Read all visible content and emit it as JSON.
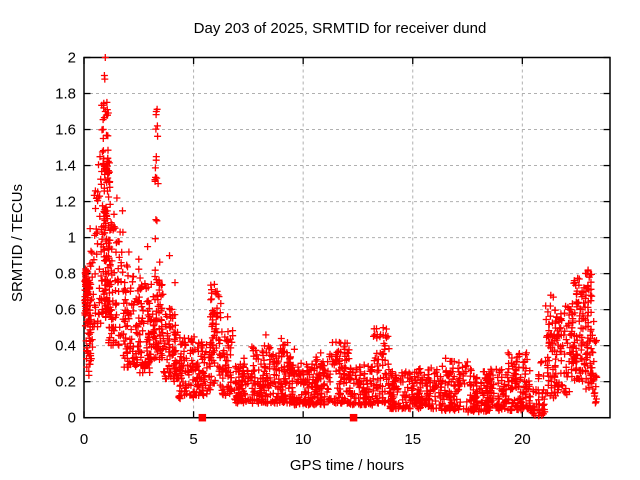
{
  "chart_data": {
    "type": "scatter",
    "title": "Day 203 of 2025, SRMTID for receiver dund",
    "xlabel": "GPS time / hours",
    "ylabel": "SRMTID / TECUs",
    "xlim": [
      0,
      24
    ],
    "ylim": [
      0,
      2
    ],
    "xticks": [
      0,
      5,
      10,
      15,
      20
    ],
    "xtick_labels": [
      "0",
      "5",
      "10",
      "15",
      "20"
    ],
    "yticks": [
      0,
      0.2,
      0.4,
      0.6,
      0.8,
      1,
      1.2,
      1.4,
      1.6,
      1.8,
      2
    ],
    "ytick_labels": [
      "0",
      "0.2",
      "0.4",
      "0.6",
      "0.8",
      "1",
      "1.2",
      "1.4",
      "1.6",
      "1.8",
      "2"
    ],
    "grid": "dashed-gray-at-major-ticks",
    "grid_color": "#b0b0b0",
    "marker": "plus",
    "marker_color": "#ff0000",
    "frame_color": "#000000",
    "legend": "none",
    "seed": 1337,
    "bands_format": "[t_start_h, t_end_h, n_points, value_min, value_max, skew_toward_min]",
    "density_bands": [
      [
        0.02,
        0.18,
        55,
        0.55,
        0.85,
        0.8
      ],
      [
        0.03,
        0.35,
        22,
        0.2,
        0.55,
        1
      ],
      [
        0.15,
        0.55,
        40,
        0.35,
        0.95,
        1.1
      ],
      [
        0.45,
        0.8,
        35,
        0.5,
        1.45,
        1.6
      ],
      [
        0.8,
        1.2,
        110,
        0.55,
        1.45,
        1.2
      ],
      [
        0.82,
        1.1,
        22,
        1.3,
        1.8,
        1
      ],
      [
        1.1,
        1.8,
        85,
        0.4,
        1.15,
        1.3
      ],
      [
        1.8,
        2.6,
        85,
        0.28,
        0.85,
        1.3
      ],
      [
        2.4,
        3.15,
        80,
        0.25,
        0.75,
        1.25
      ],
      [
        3.15,
        3.6,
        65,
        0.3,
        0.85,
        1.2
      ],
      [
        3.25,
        3.52,
        13,
        0.85,
        1.75,
        1
      ],
      [
        3.6,
        4.3,
        75,
        0.2,
        0.62,
        1.3
      ],
      [
        4.3,
        5.1,
        85,
        0.1,
        0.45,
        1.15
      ],
      [
        5.1,
        5.75,
        65,
        0.12,
        0.42,
        1.2
      ],
      [
        5.75,
        6.25,
        70,
        0.18,
        0.74,
        1.15
      ],
      [
        6.25,
        6.8,
        55,
        0.12,
        0.52,
        1.35
      ],
      [
        6.8,
        7.6,
        80,
        0.08,
        0.3,
        1.3
      ],
      [
        7.6,
        8.6,
        100,
        0.08,
        0.4,
        1.5
      ],
      [
        8.6,
        9.4,
        90,
        0.08,
        0.42,
        1.6
      ],
      [
        9.4,
        10.2,
        90,
        0.07,
        0.34,
        1.5
      ],
      [
        10.2,
        11.2,
        100,
        0.07,
        0.34,
        1.5
      ],
      [
        11.2,
        12.1,
        90,
        0.08,
        0.42,
        1.5
      ],
      [
        12.1,
        13.2,
        100,
        0.07,
        0.3,
        1.5
      ],
      [
        13.2,
        13.9,
        65,
        0.08,
        0.5,
        1.7
      ],
      [
        13.9,
        15.2,
        110,
        0.05,
        0.26,
        1.4
      ],
      [
        15.2,
        16.3,
        100,
        0.05,
        0.28,
        1.4
      ],
      [
        16.3,
        17.3,
        90,
        0.04,
        0.32,
        1.5
      ],
      [
        17.3,
        18.4,
        100,
        0.03,
        0.3,
        1.5
      ],
      [
        18.4,
        19.2,
        80,
        0.04,
        0.27,
        1.4
      ],
      [
        19.2,
        20.0,
        80,
        0.04,
        0.36,
        1.6
      ],
      [
        20.0,
        20.35,
        38,
        0.05,
        0.36,
        1.3
      ],
      [
        20.35,
        21.05,
        42,
        0.01,
        0.16,
        1.3
      ],
      [
        20.6,
        21.0,
        6,
        0.2,
        0.33,
        1
      ],
      [
        21.05,
        21.45,
        42,
        0.1,
        0.68,
        1.3
      ],
      [
        21.45,
        22.25,
        85,
        0.12,
        0.62,
        1.2
      ],
      [
        22.25,
        22.85,
        85,
        0.2,
        0.78,
        1.05
      ],
      [
        22.85,
        23.25,
        65,
        0.15,
        0.82,
        1.05
      ],
      [
        23.2,
        23.4,
        16,
        0.08,
        0.45,
        1.2
      ]
    ],
    "outlier_points": [
      [
        0.28,
        1.05
      ],
      [
        0.97,
        2.0
      ],
      [
        0.93,
        1.9
      ],
      [
        0.95,
        1.88
      ],
      [
        0.9,
        1.72
      ],
      [
        0.97,
        1.7
      ],
      [
        1.02,
        1.68
      ],
      [
        0.88,
        1.55
      ],
      [
        1.5,
        1.22
      ],
      [
        2.05,
        0.92
      ],
      [
        2.5,
        0.88
      ],
      [
        2.9,
        0.95
      ],
      [
        3.3,
        1.7
      ],
      [
        3.35,
        1.62
      ],
      [
        3.3,
        1.45
      ],
      [
        3.38,
        1.3
      ],
      [
        3.28,
        1.1
      ],
      [
        3.9,
        0.9
      ],
      [
        4.15,
        0.75
      ],
      [
        5.95,
        0.74
      ],
      [
        6.0,
        0.7
      ],
      [
        6.55,
        0.56
      ],
      [
        7.3,
        0.33
      ],
      [
        8.3,
        0.46
      ],
      [
        9.0,
        0.44
      ],
      [
        9.6,
        0.38
      ],
      [
        10.8,
        0.36
      ],
      [
        11.5,
        0.42
      ],
      [
        11.9,
        0.38
      ],
      [
        13.65,
        0.5
      ],
      [
        13.5,
        0.45
      ],
      [
        16.5,
        0.33
      ],
      [
        17.5,
        0.31
      ],
      [
        19.35,
        0.36
      ],
      [
        20.15,
        0.35
      ],
      [
        21.3,
        0.68
      ],
      [
        21.28,
        0.62
      ],
      [
        22.4,
        0.75
      ],
      [
        22.6,
        0.77
      ],
      [
        23.0,
        0.82
      ],
      [
        22.95,
        0.8
      ],
      [
        23.05,
        0.78
      ]
    ],
    "square_markers_at_zero": [
      [
        5.4,
        0
      ],
      [
        12.3,
        0
      ]
    ]
  }
}
